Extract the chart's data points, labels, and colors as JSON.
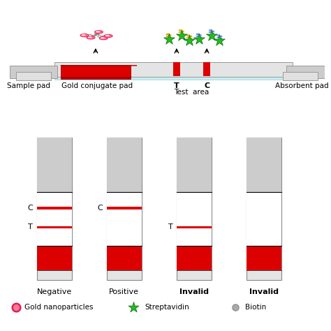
{
  "bg_color": "#ffffff",
  "gray_strip": "#d8d8d8",
  "gray_dark": "#aaaaaa",
  "gray_pad": "#c8c8c8",
  "red_color": "#dd0000",
  "red_dark": "#aa0000",
  "cyan_membrane": "#c8eef0",
  "strip_labels": [
    "Negative",
    "Positive",
    "Invalid",
    "Invalid"
  ],
  "strip_configs": [
    {
      "has_c": true,
      "has_t": true,
      "c_lbl": "C",
      "t_lbl": "T"
    },
    {
      "has_c": true,
      "has_t": false,
      "c_lbl": "C",
      "t_lbl": ""
    },
    {
      "has_c": false,
      "has_t": true,
      "c_lbl": "",
      "t_lbl": "T"
    },
    {
      "has_c": false,
      "has_t": false,
      "c_lbl": "",
      "t_lbl": ""
    }
  ],
  "top_labels": {
    "sample_pad": "Sample pad",
    "gold_pad": "Gold conjugate pad",
    "test_area": "Test  area",
    "absorbent": "Absorbent pad",
    "T": "T",
    "C": "C"
  }
}
